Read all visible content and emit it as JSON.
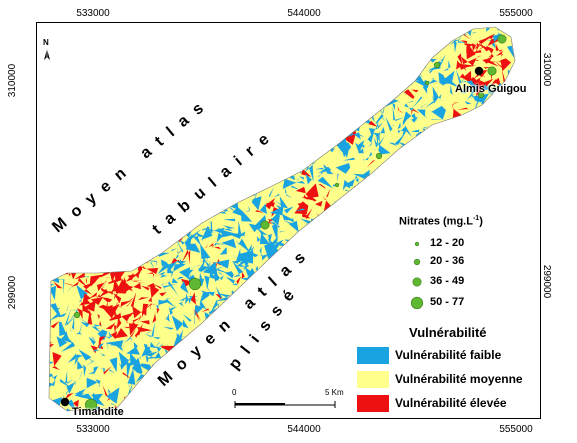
{
  "axes": {
    "x_ticks": [
      "533000",
      "544000",
      "555000"
    ],
    "y_ticks": [
      "310000",
      "299000"
    ]
  },
  "north": {
    "label": "N"
  },
  "regions": {
    "tabulaire_line1": "Moyen atlas",
    "tabulaire_line2": "tabulaire",
    "plisse_line1": "Moyen atlas",
    "plisse_line2": "plissé"
  },
  "places": [
    {
      "name": "Almis Guigou"
    },
    {
      "name": "Timahdite"
    }
  ],
  "nitrates_legend": {
    "title": "Nitrates (mg.L",
    "title_sup": "-1",
    "title_close": ")",
    "classes": [
      "12 - 20",
      "20 - 36",
      "36 - 49",
      "50 - 77"
    ]
  },
  "vulnerability_legend": {
    "title": "Vulnérabilité",
    "classes": [
      {
        "label": "Vulnérabilité faible",
        "color": "#19a3e0"
      },
      {
        "label": "Vulnérabilité moyenne",
        "color": "#ffff8c"
      },
      {
        "label": "Vulnérabilité élevée",
        "color": "#ee1111"
      }
    ]
  },
  "scale_bar": {
    "start": "0",
    "end": "5 Km"
  },
  "colors": {
    "low": "#19a3e0",
    "medium": "#ffff8c",
    "high": "#ee1111",
    "nitrate_point": "#5fb832"
  }
}
